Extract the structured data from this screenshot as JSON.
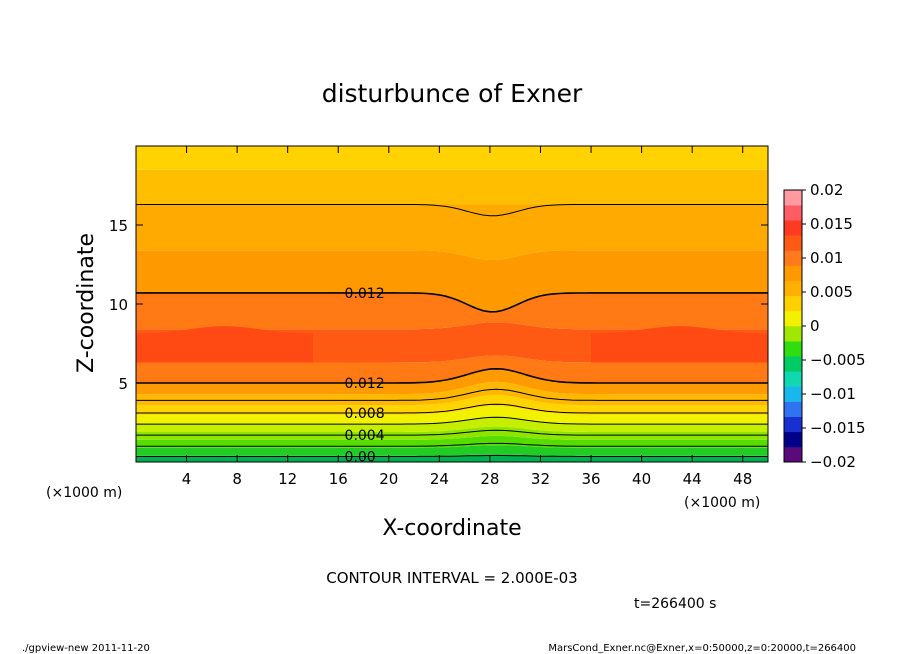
{
  "chart_data": {
    "type": "contour",
    "title": "disturbunce of Exner",
    "xlabel": "X-coordinate",
    "ylabel": "Z-coordinate",
    "x_unit": "(×1000 m)",
    "y_unit": "(×1000 m)",
    "xlim": [
      0,
      50
    ],
    "ylim": [
      0,
      20
    ],
    "x_ticks": [
      4,
      8,
      12,
      16,
      20,
      24,
      28,
      32,
      36,
      40,
      44,
      48
    ],
    "y_ticks": [
      5,
      10,
      15
    ],
    "contour_interval_text": "CONTOUR INTERVAL = 2.000E-03",
    "contour_labels": [
      {
        "text": "0.012",
        "x": 16.5,
        "y": 10.7
      },
      {
        "text": "0.012",
        "x": 16.5,
        "y": 5.0
      },
      {
        "text": "0.008",
        "x": 16.5,
        "y": 3.1
      },
      {
        "text": "0.004",
        "x": 16.5,
        "y": 1.7
      },
      {
        "text": "0.00",
        "x": 16.5,
        "y": 0.35
      }
    ],
    "colorbar": {
      "ticks": [
        "0.02",
        "0.015",
        "0.01",
        "0.005",
        "0",
        "−0.005",
        "−0.01",
        "−0.015",
        "−0.02"
      ],
      "min": -0.02,
      "max": 0.02,
      "level_colors": [
        "#5a0a7a",
        "#000088",
        "#1a2fd0",
        "#2f73f0",
        "#18b8ec",
        "#10d8b0",
        "#00cc66",
        "#30dd10",
        "#a0e800",
        "#f2f200",
        "#ffd000",
        "#ffb000",
        "#ff9900",
        "#ff7a1a",
        "#ff5a14",
        "#ff3a22",
        "#ff5c66",
        "#ff9aa0"
      ]
    },
    "time_label": "t=266400 s"
  },
  "footer": {
    "left": "./gpview-new  2011-11-20",
    "right": "MarsCond_Exner.nc@Exner,x=0:50000,z=0:20000,t=266400"
  }
}
